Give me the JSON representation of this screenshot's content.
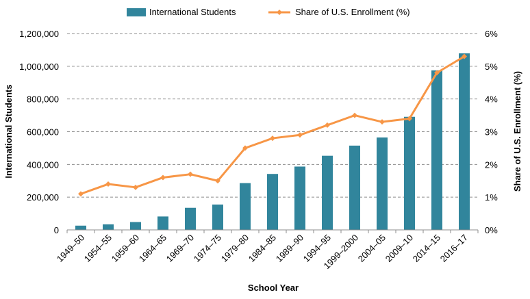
{
  "chart_data": {
    "type": "bar+line",
    "title": "",
    "xlabel": "School Year",
    "ylabel_left": "International Students",
    "ylabel_right": "Share of U.S. Enrollment (%)",
    "categories": [
      "1949–50",
      "1954–55",
      "1959–60",
      "1964–65",
      "1969–70",
      "1974–75",
      "1979–80",
      "1984–85",
      "1989–90",
      "1994–95",
      "1999–2000",
      "2004–05",
      "2009–10",
      "2014–15",
      "2016–17"
    ],
    "series": [
      {
        "name": "International Students",
        "type": "bar",
        "axis": "left",
        "color": "#31859c",
        "values": [
          26000,
          34000,
          48000,
          82000,
          135000,
          155000,
          286000,
          342000,
          387000,
          453000,
          515000,
          565000,
          691000,
          975000,
          1079000
        ]
      },
      {
        "name": "Share of U.S. Enrollment (%)",
        "type": "line",
        "axis": "right",
        "color": "#f79646",
        "values": [
          1.1,
          1.4,
          1.3,
          1.6,
          1.7,
          1.5,
          2.5,
          2.8,
          2.9,
          3.2,
          3.5,
          3.3,
          3.4,
          4.8,
          5.3
        ]
      }
    ],
    "y_left": {
      "min": 0,
      "max": 1200000,
      "ticks": [
        0,
        200000,
        400000,
        600000,
        800000,
        1000000,
        1200000
      ],
      "tick_labels": [
        "0",
        "200,000",
        "400,000",
        "600,000",
        "800,000",
        "1,000,000",
        "1,200,000"
      ]
    },
    "y_right": {
      "min": 0,
      "max": 6,
      "ticks": [
        0,
        1,
        2,
        3,
        4,
        5,
        6
      ],
      "tick_labels": [
        "0%",
        "1%",
        "2%",
        "3%",
        "4%",
        "5%",
        "6%"
      ]
    },
    "grid": "horizontal dashed",
    "legend_position": "top-center"
  }
}
